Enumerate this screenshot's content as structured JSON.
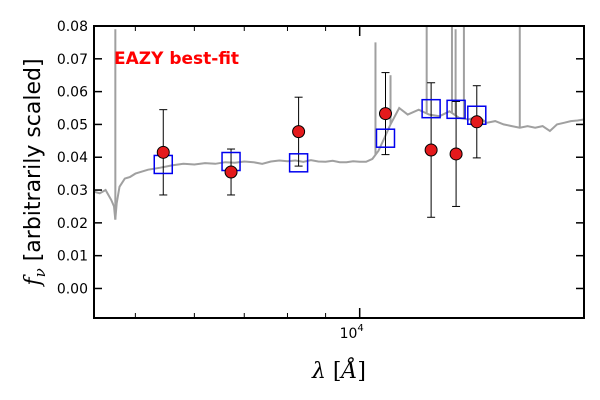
{
  "chart_data": {
    "type": "scatter",
    "xscale": "log",
    "xlim": [
      4400,
      20000
    ],
    "ylim": [
      -0.009,
      0.08
    ],
    "yticks": [
      0.0,
      0.01,
      0.02,
      0.03,
      0.04,
      0.05,
      0.06,
      0.07,
      0.08
    ],
    "ytick_labels": [
      "0.00",
      "0.01",
      "0.02",
      "0.03",
      "0.04",
      "0.05",
      "0.06",
      "0.07",
      "0.08"
    ],
    "xticks_major": [
      10000
    ],
    "xtick_major_labels": [
      {
        "base": "10",
        "exp": "4"
      }
    ],
    "xticks_minor": [
      5000,
      6000,
      7000,
      8000,
      9000
    ],
    "xlabel": {
      "symbol": "λ",
      "unit": "Å"
    },
    "ylabel": {
      "symbol": "f",
      "sub": "ν",
      "text": "[arbitrarily scaled]"
    },
    "annotation": {
      "text": "EAZY best-fit",
      "color": "#ff0000"
    },
    "colors": {
      "template": "#a0a0a0",
      "observed": "#e41a1c",
      "model": "#0000ee",
      "errorbar": "#000000"
    },
    "grid": false,
    "series": [
      {
        "kind": "template",
        "x": [
          4400,
          4480,
          4560,
          4640,
          4680,
          4700,
          4720,
          4760,
          4840,
          4920,
          5000,
          5200,
          5400,
          5600,
          5800,
          6000,
          6200,
          6400,
          6600,
          6800,
          7000,
          7200,
          7400,
          7600,
          7800,
          8000,
          8200,
          8400,
          8600,
          8800,
          9000,
          9200,
          9400,
          9600,
          9800,
          10000,
          10200,
          10400,
          10600,
          10800,
          11000,
          11300,
          11600,
          12000,
          12400,
          12800,
          13200,
          13600,
          14000,
          14400,
          14800,
          15200,
          15600,
          16000,
          16400,
          16800,
          17200,
          17600,
          18000,
          18400,
          18800,
          19200,
          19600,
          20000
        ],
        "y": [
          0.0295,
          0.029,
          0.03,
          0.027,
          0.025,
          0.021,
          0.026,
          0.031,
          0.0335,
          0.034,
          0.035,
          0.0362,
          0.0368,
          0.0375,
          0.038,
          0.0378,
          0.0382,
          0.038,
          0.0385,
          0.0383,
          0.0387,
          0.0385,
          0.038,
          0.0387,
          0.039,
          0.0388,
          0.039,
          0.0386,
          0.0391,
          0.0387,
          0.0386,
          0.0389,
          0.0385,
          0.0385,
          0.0388,
          0.0386,
          0.0386,
          0.0395,
          0.042,
          0.046,
          0.05,
          0.055,
          0.053,
          0.0545,
          0.053,
          0.0525,
          0.054,
          0.052,
          0.0515,
          0.0525,
          0.0505,
          0.051,
          0.05,
          0.0495,
          0.049,
          0.0495,
          0.049,
          0.0495,
          0.048,
          0.05,
          0.0505,
          0.051,
          0.0512,
          0.0515
        ],
        "emission_lines": [
          {
            "x": 4700,
            "y": 0.079
          },
          {
            "x": 10500,
            "y": 0.075
          },
          {
            "x": 11000,
            "y": 0.065
          },
          {
            "x": 12300,
            "y": 0.08
          },
          {
            "x": 13300,
            "y": 0.08
          },
          {
            "x": 13450,
            "y": 0.079
          },
          {
            "x": 13800,
            "y": 0.08
          },
          {
            "x": 16400,
            "y": 0.08
          }
        ]
      },
      {
        "kind": "observed",
        "x": [
          5450,
          6720,
          8280,
          10830,
          12470,
          13470,
          14360
        ],
        "y": [
          0.0415,
          0.0355,
          0.0478,
          0.0533,
          0.0422,
          0.041,
          0.0508
        ],
        "yerr": [
          0.013,
          0.007,
          0.0105,
          0.0125,
          0.0205,
          0.016,
          0.011
        ]
      },
      {
        "kind": "model",
        "x": [
          5450,
          6720,
          8280,
          10830,
          12470,
          13470,
          14360
        ],
        "y": [
          0.0378,
          0.0387,
          0.0383,
          0.0458,
          0.0548,
          0.0546,
          0.0528
        ]
      }
    ]
  }
}
